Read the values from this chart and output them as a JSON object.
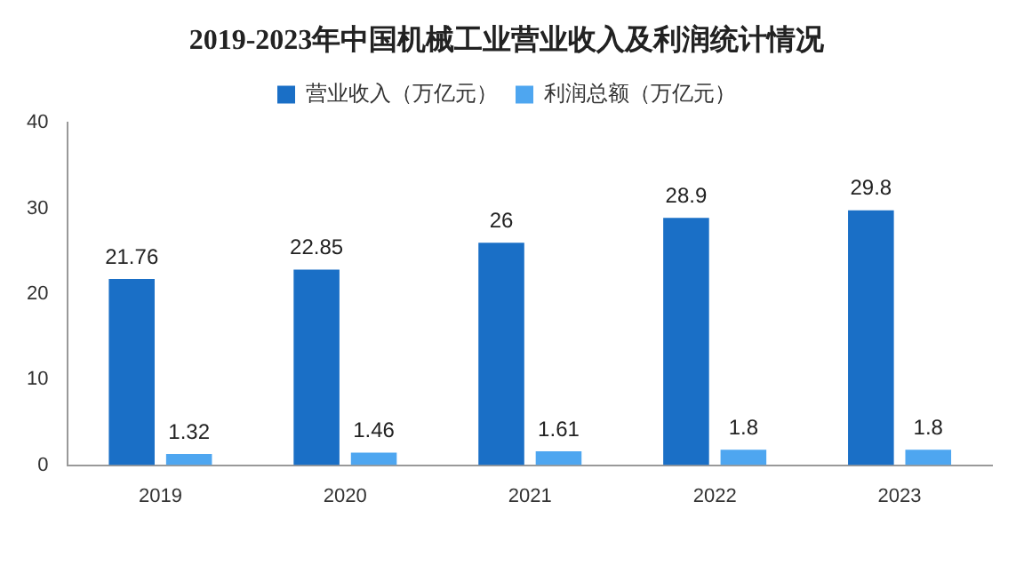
{
  "chart_data": {
    "type": "bar",
    "title": "2019-2023年中国机械工业营业收入及利润统计情况",
    "categories": [
      "2019",
      "2020",
      "2021",
      "2022",
      "2023"
    ],
    "series": [
      {
        "name": "营业收入（万亿元）",
        "color": "#1a6fc6",
        "values": [
          21.76,
          22.85,
          26,
          28.9,
          29.8
        ]
      },
      {
        "name": "利润总额（万亿元）",
        "color": "#4ea6f0",
        "values": [
          1.32,
          1.46,
          1.61,
          1.8,
          1.8
        ]
      }
    ],
    "ylim": [
      0,
      40
    ],
    "yticks": [
      0,
      10,
      20,
      30,
      40
    ],
    "grid": false,
    "legend": "top",
    "data_labels": true
  }
}
